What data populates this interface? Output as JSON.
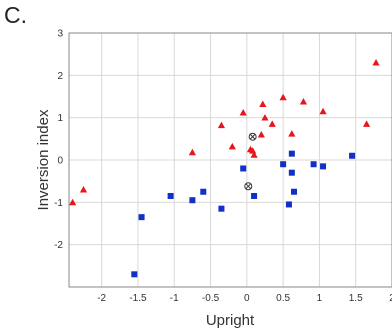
{
  "panel_label": "C.",
  "colors": {
    "triangle": "#e8151b",
    "square": "#1030c8",
    "circle": "#333333",
    "grid": "#d8d8d8",
    "axis": "#888888"
  },
  "chart_data": {
    "type": "scatter",
    "title": "",
    "xlabel": "Upright",
    "ylabel": "Inversion index",
    "xlim": [
      -2.45,
      2.0
    ],
    "ylim": [
      -3.0,
      3.0
    ],
    "x_ticks": [
      -2,
      -1.5,
      -1,
      -0.5,
      0,
      0.5,
      1,
      1.5,
      2
    ],
    "x_tick_labels": [
      "-2",
      "-1.5",
      "-1",
      "-0.5",
      "0",
      "0.5",
      "1",
      "1.5",
      "2"
    ],
    "y_ticks": [
      3,
      2,
      1,
      0,
      -1,
      -2
    ],
    "y_tick_labels": [
      "3",
      "2",
      "1",
      "0",
      "-1",
      "-2"
    ],
    "grid": true,
    "legend": "none",
    "series": [
      {
        "marker": "triangle",
        "color": "#e8151b",
        "points": [
          [
            -2.4,
            -1.0
          ],
          [
            -2.25,
            -0.7
          ],
          [
            -0.75,
            0.18
          ],
          [
            -0.35,
            0.82
          ],
          [
            -0.2,
            0.32
          ],
          [
            -0.05,
            1.12
          ],
          [
            0.05,
            0.25
          ],
          [
            0.1,
            0.12
          ],
          [
            0.08,
            0.22
          ],
          [
            0.2,
            0.6
          ],
          [
            0.22,
            1.32
          ],
          [
            0.25,
            1.0
          ],
          [
            0.35,
            0.85
          ],
          [
            0.5,
            1.48
          ],
          [
            0.62,
            0.62
          ],
          [
            0.78,
            1.38
          ],
          [
            1.05,
            1.15
          ],
          [
            1.65,
            0.85
          ],
          [
            1.78,
            2.3
          ]
        ]
      },
      {
        "marker": "square",
        "color": "#1030c8",
        "points": [
          [
            -1.55,
            -2.7
          ],
          [
            -1.45,
            -1.35
          ],
          [
            -1.05,
            -0.85
          ],
          [
            -0.75,
            -0.95
          ],
          [
            -0.6,
            -0.75
          ],
          [
            -0.35,
            -1.15
          ],
          [
            -0.05,
            -0.2
          ],
          [
            0.1,
            -0.85
          ],
          [
            0.5,
            -0.1
          ],
          [
            0.58,
            -1.05
          ],
          [
            0.62,
            0.15
          ],
          [
            0.62,
            -0.3
          ],
          [
            0.65,
            -0.75
          ],
          [
            0.92,
            -0.1
          ],
          [
            1.05,
            -0.15
          ],
          [
            1.45,
            0.1
          ]
        ]
      },
      {
        "marker": "circled-x",
        "color": "#333333",
        "points": [
          [
            0.08,
            0.55
          ],
          [
            0.02,
            -0.62
          ]
        ]
      }
    ]
  }
}
